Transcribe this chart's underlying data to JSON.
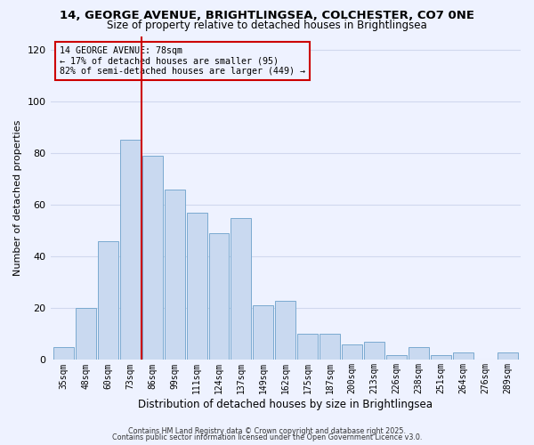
{
  "title": "14, GEORGE AVENUE, BRIGHTLINGSEA, COLCHESTER, CO7 0NE",
  "subtitle": "Size of property relative to detached houses in Brightlingsea",
  "xlabel": "Distribution of detached houses by size in Brightlingsea",
  "ylabel": "Number of detached properties",
  "bar_labels": [
    "35sqm",
    "48sqm",
    "60sqm",
    "73sqm",
    "86sqm",
    "99sqm",
    "111sqm",
    "124sqm",
    "137sqm",
    "149sqm",
    "162sqm",
    "175sqm",
    "187sqm",
    "200sqm",
    "213sqm",
    "226sqm",
    "238sqm",
    "251sqm",
    "264sqm",
    "276sqm",
    "289sqm"
  ],
  "bar_values": [
    5,
    20,
    46,
    85,
    79,
    66,
    57,
    49,
    55,
    21,
    23,
    10,
    10,
    6,
    7,
    2,
    5,
    2,
    3,
    0,
    3
  ],
  "bar_color": "#c9d9f0",
  "bar_edgecolor": "#7aaad0",
  "vline_x": 3.5,
  "vline_color": "#cc0000",
  "annotation_text": "14 GEORGE AVENUE: 78sqm\n← 17% of detached houses are smaller (95)\n82% of semi-detached houses are larger (449) →",
  "annotation_box_edgecolor": "#cc0000",
  "ylim": [
    0,
    125
  ],
  "yticks": [
    0,
    20,
    40,
    60,
    80,
    100,
    120
  ],
  "bg_color": "#eef2ff",
  "grid_color": "#d0d8ee",
  "footer1": "Contains HM Land Registry data © Crown copyright and database right 2025.",
  "footer2": "Contains public sector information licensed under the Open Government Licence v3.0."
}
